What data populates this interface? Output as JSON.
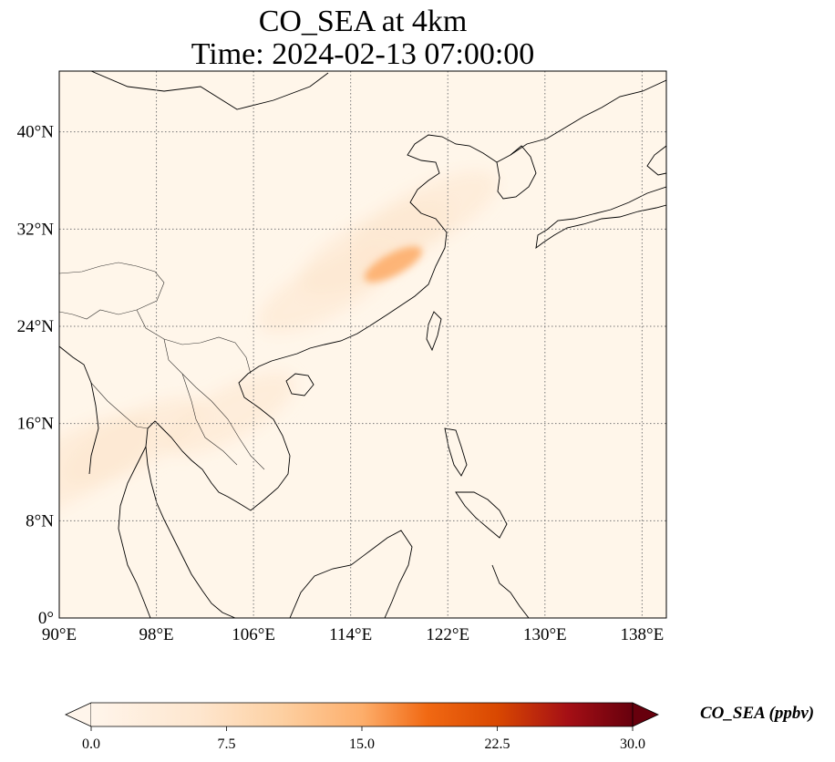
{
  "title": {
    "line1": "CO_SEA at 4km",
    "line2": "Time: 2024-02-13 07:00:00"
  },
  "map": {
    "extent": {
      "lon_min": 90,
      "lon_max": 140,
      "lat_min": 0,
      "lat_max": 45
    },
    "x_ticks": [
      {
        "value": 90,
        "label": "90°E"
      },
      {
        "value": 98,
        "label": "98°E"
      },
      {
        "value": 106,
        "label": "106°E"
      },
      {
        "value": 114,
        "label": "114°E"
      },
      {
        "value": 122,
        "label": "122°E"
      },
      {
        "value": 130,
        "label": "130°E"
      },
      {
        "value": 138,
        "label": "138°E"
      }
    ],
    "y_ticks": [
      {
        "value": 0,
        "label": "0°"
      },
      {
        "value": 8,
        "label": "8°N"
      },
      {
        "value": 16,
        "label": "16°N"
      },
      {
        "value": 24,
        "label": "24°N"
      },
      {
        "value": 32,
        "label": "32°N"
      },
      {
        "value": 40,
        "label": "40°N"
      }
    ],
    "grid": "dotted",
    "background_color": "#fff6ea",
    "plumes": [
      {
        "lon": 117.5,
        "lat": 29.1,
        "value": 14.5
      },
      {
        "lon": 116.0,
        "lat": 30.5,
        "value": 4.5
      },
      {
        "lon": 120.0,
        "lat": 33.0,
        "value": 4.0
      },
      {
        "lon": 112.0,
        "lat": 27.0,
        "value": 3.0
      },
      {
        "lon": 91.0,
        "lat": 12.5,
        "value": 6.0
      },
      {
        "lon": 96.0,
        "lat": 14.5,
        "value": 3.5
      },
      {
        "lon": 104.0,
        "lat": 16.8,
        "value": 2.5
      }
    ]
  },
  "colorbar": {
    "label": "CO_SEA (ppbv)",
    "min": 0,
    "max": 30,
    "extend": "both",
    "ticks": [
      "0.0",
      "7.5",
      "15.0",
      "22.5",
      "30.0"
    ],
    "colors": [
      "#fff5eb",
      "#fdd0a2",
      "#fdae6b",
      "#f16913",
      "#d94801",
      "#a50f15",
      "#67000d"
    ]
  }
}
